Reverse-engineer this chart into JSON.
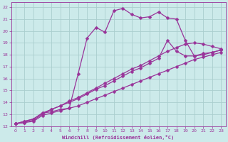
{
  "background_color": "#cceaea",
  "grid_color": "#aacece",
  "line_color": "#993399",
  "markersize": 2.5,
  "linewidth": 0.9,
  "xlabel": "Windchill (Refroidissement éolien,°C)",
  "xlim": [
    -0.5,
    23.5
  ],
  "ylim": [
    12,
    22.4
  ],
  "xticks": [
    0,
    1,
    2,
    3,
    4,
    5,
    6,
    7,
    8,
    9,
    10,
    11,
    12,
    13,
    14,
    15,
    16,
    17,
    18,
    19,
    20,
    21,
    22,
    23
  ],
  "yticks": [
    12,
    13,
    14,
    15,
    16,
    17,
    18,
    19,
    20,
    21,
    22
  ],
  "lines": [
    {
      "x": [
        0,
        1,
        2,
        3,
        4,
        5,
        6,
        7,
        8,
        9,
        10,
        11,
        12,
        13,
        14,
        15,
        16,
        17,
        18,
        19,
        20,
        21,
        22,
        23
      ],
      "y": [
        12.2,
        12.4,
        12.6,
        13.1,
        13.2,
        13.4,
        13.5,
        16.4,
        19.4,
        20.3,
        19.9,
        21.7,
        21.9,
        21.4,
        21.1,
        21.2,
        21.6,
        21.1,
        21.0,
        19.2,
        17.9,
        18.1,
        18.2,
        18.4
      ]
    },
    {
      "x": [
        0,
        1,
        2,
        3,
        4,
        5,
        6,
        7,
        8,
        9,
        10,
        11,
        12,
        13,
        14,
        15,
        16,
        17,
        18,
        19,
        20,
        21,
        22,
        23
      ],
      "y": [
        12.2,
        12.3,
        12.5,
        13.0,
        13.4,
        13.7,
        14.0,
        14.3,
        14.7,
        15.1,
        15.4,
        15.8,
        16.2,
        16.6,
        16.9,
        17.3,
        17.7,
        19.2,
        18.3,
        17.9,
        17.9,
        18.0,
        18.2,
        18.4
      ]
    },
    {
      "x": [
        0,
        1,
        2,
        3,
        4,
        5,
        6,
        7,
        8,
        9,
        10,
        11,
        12,
        13,
        14,
        15,
        16,
        17,
        18,
        19,
        20,
        21,
        22,
        23
      ],
      "y": [
        12.2,
        12.3,
        12.4,
        12.9,
        13.1,
        13.3,
        13.5,
        13.7,
        14.0,
        14.3,
        14.6,
        14.9,
        15.2,
        15.5,
        15.8,
        16.1,
        16.4,
        16.7,
        17.0,
        17.3,
        17.6,
        17.8,
        18.0,
        18.2
      ]
    },
    {
      "x": [
        0,
        1,
        2,
        3,
        4,
        5,
        6,
        7,
        8,
        9,
        10,
        11,
        12,
        13,
        14,
        15,
        16,
        17,
        18,
        19,
        20,
        21,
        22,
        23
      ],
      "y": [
        12.2,
        12.4,
        12.6,
        13.1,
        13.4,
        13.7,
        14.1,
        14.4,
        14.8,
        15.2,
        15.6,
        16.0,
        16.4,
        16.8,
        17.1,
        17.5,
        17.9,
        18.3,
        18.6,
        18.9,
        19.0,
        18.9,
        18.7,
        18.5
      ]
    }
  ]
}
